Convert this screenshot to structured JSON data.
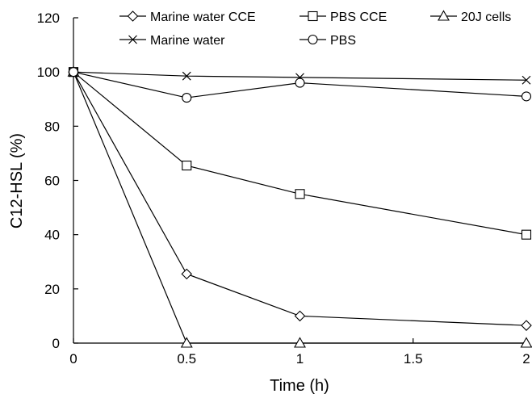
{
  "chart_data": {
    "type": "line",
    "title": "",
    "xlabel": "Time (h)",
    "ylabel": "C12-HSL (%)",
    "xlim": [
      0,
      2
    ],
    "ylim": [
      0,
      120
    ],
    "x_ticks": [
      0,
      0.5,
      1,
      1.5,
      2
    ],
    "x_tick_labels": [
      "0",
      "0.5",
      "1",
      "1.5",
      "2"
    ],
    "y_ticks": [
      0,
      20,
      40,
      60,
      80,
      100,
      120
    ],
    "y_tick_labels": [
      "0",
      "20",
      "40",
      "60",
      "80",
      "100",
      "120"
    ],
    "grid": false,
    "legend_position": "top",
    "x": [
      0,
      0.5,
      1,
      2
    ],
    "series": [
      {
        "name": "Marine water CCE",
        "marker": "diamond",
        "values": [
          100,
          25.5,
          10,
          6.5
        ]
      },
      {
        "name": "PBS CCE",
        "marker": "square",
        "values": [
          100,
          65.5,
          55,
          40
        ]
      },
      {
        "name": "20J cells",
        "marker": "triangle",
        "values": [
          100,
          0,
          0,
          0
        ]
      },
      {
        "name": "Marine water",
        "marker": "x",
        "values": [
          100,
          98.5,
          98,
          97
        ]
      },
      {
        "name": "PBS",
        "marker": "circle",
        "values": [
          100,
          90.5,
          96,
          91
        ]
      }
    ]
  }
}
